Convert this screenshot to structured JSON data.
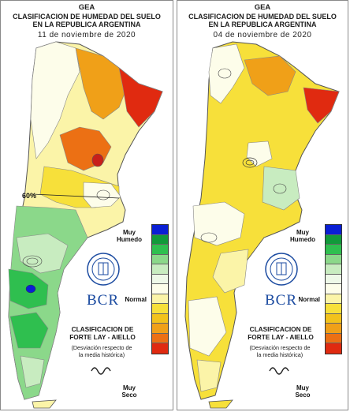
{
  "panels": [
    {
      "org": "GEA",
      "title_line1": "CLASIFICACION DE HUMEDAD DEL SUELO",
      "title_line2": "EN LA REPUBLICA ARGENTINA",
      "date": "11 de noviembre de 2020",
      "annotation": "60%"
    },
    {
      "org": "GEA",
      "title_line1": "CLASIFICACION DE HUMEDAD DEL SUELO",
      "title_line2": "EN LA REPUBLICA ARGENTINA",
      "date": "04 de noviembre de 2020"
    }
  ],
  "legend": {
    "top_label": "Muy\nHumedo",
    "mid_label": "Normal",
    "bottom_label": "Muy\nSeco",
    "colors": [
      "#0a1fd4",
      "#119a3a",
      "#2fbf4f",
      "#8bd88a",
      "#c8ecc0",
      "#eef8e8",
      "#fdfdea",
      "#fbf4a8",
      "#f7e03a",
      "#f2c21c",
      "#f0a018",
      "#ec7014",
      "#e02a10"
    ]
  },
  "branding": {
    "logo_text": "BCR",
    "classification_line1": "CLASIFICACION DE",
    "classification_line2": "FORTE LAY - AIELLO",
    "description_line1": "(Desviación respecto de",
    "description_line2": "la media histórica)"
  }
}
